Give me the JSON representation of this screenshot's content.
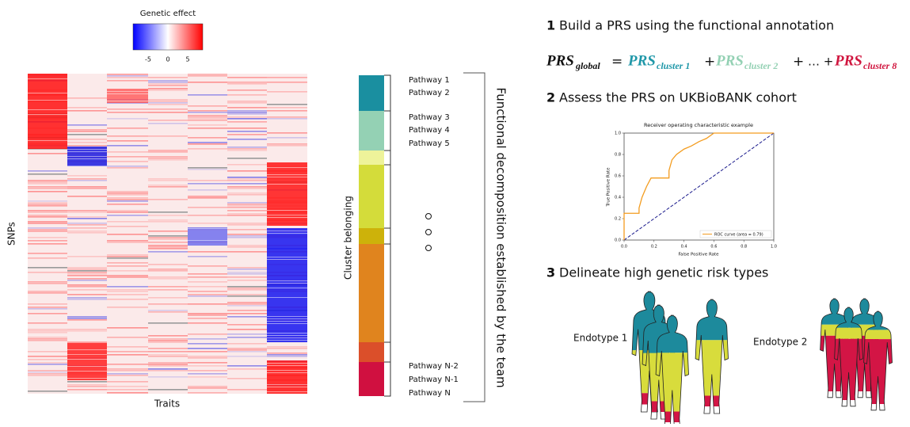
{
  "heatmap": {
    "title": "Genetic effect",
    "colorbar_ticks": [
      -5,
      0,
      5
    ],
    "y_label": "SNPs",
    "x_label": "Traits"
  },
  "clusters": {
    "label": "Cluster belonging",
    "pathways": [
      "Pathway 1",
      "Pathway 2",
      "Pathway 3",
      "Pathway 4",
      "Pathway 5",
      "Pathway N-2",
      "Pathway N-1",
      "Pathway N"
    ],
    "bracket_label": "Functional decomposition established by the team"
  },
  "steps": [
    {
      "number": "1",
      "text": "Build a PRS using the functional annotation"
    },
    {
      "number": "2",
      "text": "Assess the PRS on UKBioBANK cohort"
    },
    {
      "number": "3",
      "text": "Delineate high genetic risk types"
    }
  ],
  "formula": {
    "lhs": "PRS",
    "lhs_sub": "global",
    "equals": "=",
    "terms": [
      {
        "base": "PRS",
        "sub": "cluster 1"
      },
      {
        "base": "PRS",
        "sub": "cluster 2"
      },
      {
        "base": "PRS",
        "sub": "cluster 8"
      }
    ],
    "ops": [
      "+",
      "+",
      "… +"
    ]
  },
  "roc": {
    "title": "Receiver operating characteristic example",
    "x_label": "False Positive Rate",
    "y_label": "True Positive Rate",
    "legend": "ROC curve (area = 0.79)",
    "xticks": [
      {
        "value": 0,
        "label": "0.0"
      },
      {
        "value": 0.2,
        "label": "0.2"
      },
      {
        "value": 0.4,
        "label": "0.4"
      },
      {
        "value": 0.6,
        "label": "0.6"
      },
      {
        "value": 0.8,
        "label": "0.8"
      },
      {
        "value": 1,
        "label": "1.0"
      }
    ],
    "yticks": [
      {
        "value": 0,
        "label": "0.0"
      },
      {
        "value": 0.2,
        "label": "0.2"
      },
      {
        "value": 0.4,
        "label": "0.4"
      },
      {
        "value": 0.6,
        "label": "0.6"
      },
      {
        "value": 0.8,
        "label": "0.8"
      },
      {
        "value": 1,
        "label": "1.0"
      }
    ],
    "fpr": [
      0,
      0,
      0.1,
      0.1,
      0.12,
      0.15,
      0.18,
      0.3,
      0.3,
      0.32,
      0.35,
      0.4,
      0.45,
      0.5,
      0.55,
      0.6,
      1
    ],
    "tpr": [
      0,
      0.25,
      0.25,
      0.3,
      0.4,
      0.5,
      0.58,
      0.58,
      0.65,
      0.75,
      0.8,
      0.85,
      0.88,
      0.92,
      0.95,
      1,
      1
    ]
  },
  "endotypes": [
    "Endotype 1",
    "Endotype 2"
  ]
}
